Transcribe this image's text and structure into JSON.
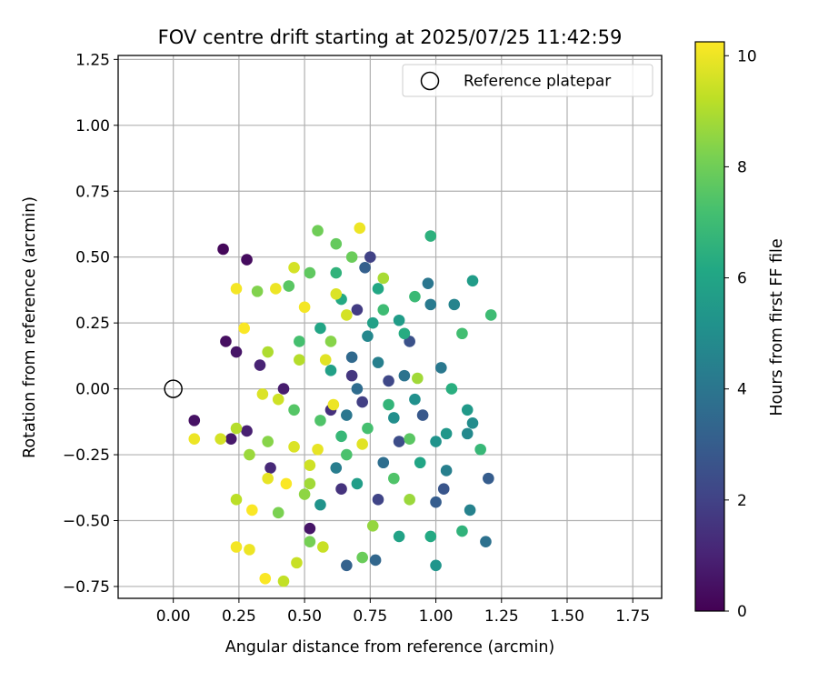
{
  "chart_data": {
    "type": "scatter",
    "title": "FOV centre drift starting at 2025/07/25 11:42:59",
    "xlabel": "Angular distance from reference (arcmin)",
    "ylabel": "Rotation from reference (arcmin)",
    "xlim": [
      -0.21,
      1.86
    ],
    "ylim": [
      -0.795,
      1.265
    ],
    "xticks": [
      0.0,
      0.25,
      0.5,
      0.75,
      1.0,
      1.25,
      1.5,
      1.75
    ],
    "xtick_labels": [
      "0.00",
      "0.25",
      "0.50",
      "0.75",
      "1.00",
      "1.25",
      "1.50",
      "1.75"
    ],
    "yticks": [
      -0.75,
      -0.5,
      -0.25,
      0.0,
      0.25,
      0.5,
      0.75,
      1.0,
      1.25
    ],
    "ytick_labels": [
      "−0.75",
      "−0.50",
      "−0.25",
      "0.00",
      "0.25",
      "0.50",
      "0.75",
      "1.00",
      "1.25"
    ],
    "grid": true,
    "legend": {
      "placement": "upper right",
      "entries": [
        "Reference platepar"
      ]
    },
    "reference_point": {
      "name": "Reference platepar",
      "x": 0.0,
      "y": 0.0,
      "marker": "open circle"
    },
    "colorbar": {
      "label": "Hours from first FF file",
      "colormap": "viridis",
      "range": [
        0,
        10.25
      ],
      "ticks": [
        0,
        2,
        4,
        6,
        8,
        10
      ],
      "tick_labels": [
        "0",
        "2",
        "4",
        "6",
        "8",
        "10"
      ]
    },
    "points": [
      {
        "x": 0.19,
        "y": 0.53,
        "h": 0.2
      },
      {
        "x": 0.28,
        "y": 0.49,
        "h": 0.3
      },
      {
        "x": 0.2,
        "y": 0.18,
        "h": 0.4
      },
      {
        "x": 0.24,
        "y": 0.14,
        "h": 0.6
      },
      {
        "x": 0.08,
        "y": -0.12,
        "h": 0.5
      },
      {
        "x": 0.22,
        "y": -0.19,
        "h": 0.7
      },
      {
        "x": 0.28,
        "y": -0.16,
        "h": 0.9
      },
      {
        "x": 0.33,
        "y": 0.09,
        "h": 1.0
      },
      {
        "x": 0.37,
        "y": -0.3,
        "h": 1.2
      },
      {
        "x": 0.42,
        "y": 0.0,
        "h": 0.8
      },
      {
        "x": 0.52,
        "y": -0.53,
        "h": 0.6
      },
      {
        "x": 0.6,
        "y": -0.08,
        "h": 1.4
      },
      {
        "x": 0.64,
        "y": -0.38,
        "h": 1.5
      },
      {
        "x": 0.68,
        "y": 0.05,
        "h": 1.6
      },
      {
        "x": 0.7,
        "y": 0.3,
        "h": 1.8
      },
      {
        "x": 0.72,
        "y": -0.05,
        "h": 1.9
      },
      {
        "x": 0.75,
        "y": 0.5,
        "h": 2.0
      },
      {
        "x": 0.78,
        "y": -0.42,
        "h": 2.1
      },
      {
        "x": 0.82,
        "y": 0.03,
        "h": 2.2
      },
      {
        "x": 0.86,
        "y": -0.2,
        "h": 2.4
      },
      {
        "x": 0.9,
        "y": 0.18,
        "h": 2.6
      },
      {
        "x": 0.95,
        "y": -0.1,
        "h": 2.8
      },
      {
        "x": 1.0,
        "y": -0.43,
        "h": 3.0
      },
      {
        "x": 1.03,
        "y": -0.38,
        "h": 2.7
      },
      {
        "x": 0.66,
        "y": -0.67,
        "h": 3.2
      },
      {
        "x": 0.77,
        "y": -0.65,
        "h": 3.4
      },
      {
        "x": 0.73,
        "y": 0.46,
        "h": 3.1
      },
      {
        "x": 0.68,
        "y": 0.12,
        "h": 3.5
      },
      {
        "x": 0.8,
        "y": -0.28,
        "h": 3.7
      },
      {
        "x": 0.88,
        "y": 0.05,
        "h": 3.9
      },
      {
        "x": 0.97,
        "y": 0.4,
        "h": 4.0
      },
      {
        "x": 0.98,
        "y": 0.32,
        "h": 4.2
      },
      {
        "x": 1.02,
        "y": 0.08,
        "h": 4.1
      },
      {
        "x": 1.04,
        "y": -0.31,
        "h": 4.4
      },
      {
        "x": 1.07,
        "y": 0.32,
        "h": 4.6
      },
      {
        "x": 1.12,
        "y": -0.17,
        "h": 4.8
      },
      {
        "x": 1.13,
        "y": -0.46,
        "h": 4.5
      },
      {
        "x": 1.14,
        "y": -0.13,
        "h": 4.9
      },
      {
        "x": 0.62,
        "y": -0.3,
        "h": 4.3
      },
      {
        "x": 0.74,
        "y": 0.2,
        "h": 4.7
      },
      {
        "x": 0.84,
        "y": -0.11,
        "h": 5.0
      },
      {
        "x": 0.92,
        "y": -0.04,
        "h": 5.1
      },
      {
        "x": 1.0,
        "y": -0.2,
        "h": 5.2
      },
      {
        "x": 1.04,
        "y": -0.17,
        "h": 5.4
      },
      {
        "x": 1.12,
        "y": -0.08,
        "h": 5.5
      },
      {
        "x": 1.14,
        "y": 0.41,
        "h": 5.6
      },
      {
        "x": 1.2,
        "y": -0.34,
        "h": 3.0
      },
      {
        "x": 1.19,
        "y": -0.58,
        "h": 3.8
      },
      {
        "x": 1.0,
        "y": -0.67,
        "h": 5.3
      },
      {
        "x": 0.86,
        "y": -0.56,
        "h": 5.9
      },
      {
        "x": 0.7,
        "y": -0.36,
        "h": 5.7
      },
      {
        "x": 0.6,
        "y": 0.07,
        "h": 5.8
      },
      {
        "x": 0.56,
        "y": 0.23,
        "h": 6.0
      },
      {
        "x": 0.64,
        "y": 0.34,
        "h": 6.2
      },
      {
        "x": 0.78,
        "y": 0.38,
        "h": 6.1
      },
      {
        "x": 0.88,
        "y": 0.21,
        "h": 6.3
      },
      {
        "x": 0.98,
        "y": 0.58,
        "h": 6.5
      },
      {
        "x": 1.06,
        "y": 0.0,
        "h": 6.4
      },
      {
        "x": 1.1,
        "y": -0.54,
        "h": 6.6
      },
      {
        "x": 1.17,
        "y": -0.23,
        "h": 6.8
      },
      {
        "x": 1.21,
        "y": 0.28,
        "h": 7.0
      },
      {
        "x": 1.1,
        "y": 0.21,
        "h": 7.1
      },
      {
        "x": 0.92,
        "y": 0.35,
        "h": 6.9
      },
      {
        "x": 0.82,
        "y": -0.06,
        "h": 6.7
      },
      {
        "x": 0.74,
        "y": -0.15,
        "h": 7.2
      },
      {
        "x": 0.66,
        "y": -0.25,
        "h": 7.3
      },
      {
        "x": 0.56,
        "y": -0.12,
        "h": 7.4
      },
      {
        "x": 0.46,
        "y": -0.08,
        "h": 7.5
      },
      {
        "x": 0.44,
        "y": 0.39,
        "h": 7.6
      },
      {
        "x": 0.52,
        "y": 0.44,
        "h": 7.7
      },
      {
        "x": 0.62,
        "y": 0.55,
        "h": 7.8
      },
      {
        "x": 0.68,
        "y": 0.5,
        "h": 7.9
      },
      {
        "x": 0.55,
        "y": 0.6,
        "h": 8.0
      },
      {
        "x": 0.72,
        "y": -0.64,
        "h": 7.9
      },
      {
        "x": 0.52,
        "y": -0.58,
        "h": 8.1
      },
      {
        "x": 0.4,
        "y": -0.47,
        "h": 8.2
      },
      {
        "x": 0.32,
        "y": 0.37,
        "h": 8.3
      },
      {
        "x": 0.36,
        "y": -0.2,
        "h": 8.4
      },
      {
        "x": 0.5,
        "y": -0.4,
        "h": 8.5
      },
      {
        "x": 0.76,
        "y": -0.52,
        "h": 8.6
      },
      {
        "x": 0.9,
        "y": -0.42,
        "h": 8.7
      },
      {
        "x": 0.93,
        "y": 0.04,
        "h": 8.8
      },
      {
        "x": 0.8,
        "y": 0.42,
        "h": 8.9
      },
      {
        "x": 0.36,
        "y": 0.14,
        "h": 9.0
      },
      {
        "x": 0.24,
        "y": -0.15,
        "h": 9.1
      },
      {
        "x": 0.24,
        "y": -0.42,
        "h": 9.2
      },
      {
        "x": 0.42,
        "y": -0.73,
        "h": 9.3
      },
      {
        "x": 0.57,
        "y": -0.6,
        "h": 9.4
      },
      {
        "x": 0.52,
        "y": -0.29,
        "h": 9.5
      },
      {
        "x": 0.46,
        "y": 0.46,
        "h": 9.6
      },
      {
        "x": 0.62,
        "y": 0.36,
        "h": 9.7
      },
      {
        "x": 0.72,
        "y": -0.21,
        "h": 9.8
      },
      {
        "x": 0.71,
        "y": 0.61,
        "h": 10.0
      },
      {
        "x": 0.24,
        "y": 0.38,
        "h": 10.1
      },
      {
        "x": 0.27,
        "y": 0.23,
        "h": 10.2
      },
      {
        "x": 0.08,
        "y": -0.19,
        "h": 10.0
      },
      {
        "x": 0.18,
        "y": -0.19,
        "h": 9.6
      },
      {
        "x": 0.24,
        "y": -0.6,
        "h": 10.1
      },
      {
        "x": 0.29,
        "y": -0.61,
        "h": 10.0
      },
      {
        "x": 0.35,
        "y": -0.72,
        "h": 10.2
      },
      {
        "x": 0.36,
        "y": -0.34,
        "h": 9.9
      },
      {
        "x": 0.43,
        "y": -0.36,
        "h": 10.2
      },
      {
        "x": 0.5,
        "y": 0.31,
        "h": 10.1
      },
      {
        "x": 0.55,
        "y": -0.23,
        "h": 9.9
      },
      {
        "x": 0.61,
        "y": -0.06,
        "h": 10.0
      },
      {
        "x": 0.4,
        "y": -0.04,
        "h": 9.5
      },
      {
        "x": 0.46,
        "y": -0.22,
        "h": 9.7
      },
      {
        "x": 0.39,
        "y": 0.38,
        "h": 10.0
      },
      {
        "x": 0.58,
        "y": 0.11,
        "h": 9.8
      },
      {
        "x": 0.66,
        "y": 0.28,
        "h": 9.6
      },
      {
        "x": 0.3,
        "y": -0.46,
        "h": 10.2
      },
      {
        "x": 0.47,
        "y": -0.66,
        "h": 9.4
      },
      {
        "x": 0.34,
        "y": -0.02,
        "h": 9.7
      },
      {
        "x": 0.29,
        "y": -0.25,
        "h": 8.7
      },
      {
        "x": 0.48,
        "y": 0.11,
        "h": 9.1
      },
      {
        "x": 0.52,
        "y": -0.36,
        "h": 8.8
      },
      {
        "x": 0.8,
        "y": 0.3,
        "h": 7.0
      },
      {
        "x": 0.86,
        "y": 0.26,
        "h": 5.6
      },
      {
        "x": 0.94,
        "y": -0.28,
        "h": 6.0
      },
      {
        "x": 0.7,
        "y": 0.0,
        "h": 3.6
      },
      {
        "x": 0.66,
        "y": -0.1,
        "h": 4.0
      },
      {
        "x": 0.78,
        "y": 0.1,
        "h": 4.4
      },
      {
        "x": 0.84,
        "y": -0.34,
        "h": 7.4
      },
      {
        "x": 0.6,
        "y": 0.18,
        "h": 8.4
      },
      {
        "x": 0.56,
        "y": -0.44,
        "h": 5.2
      },
      {
        "x": 0.76,
        "y": 0.25,
        "h": 5.8
      },
      {
        "x": 0.9,
        "y": -0.19,
        "h": 7.6
      },
      {
        "x": 0.62,
        "y": 0.44,
        "h": 6.6
      },
      {
        "x": 0.48,
        "y": 0.18,
        "h": 7.2
      },
      {
        "x": 0.64,
        "y": -0.18,
        "h": 6.8
      },
      {
        "x": 0.98,
        "y": -0.56,
        "h": 6.2
      }
    ]
  }
}
